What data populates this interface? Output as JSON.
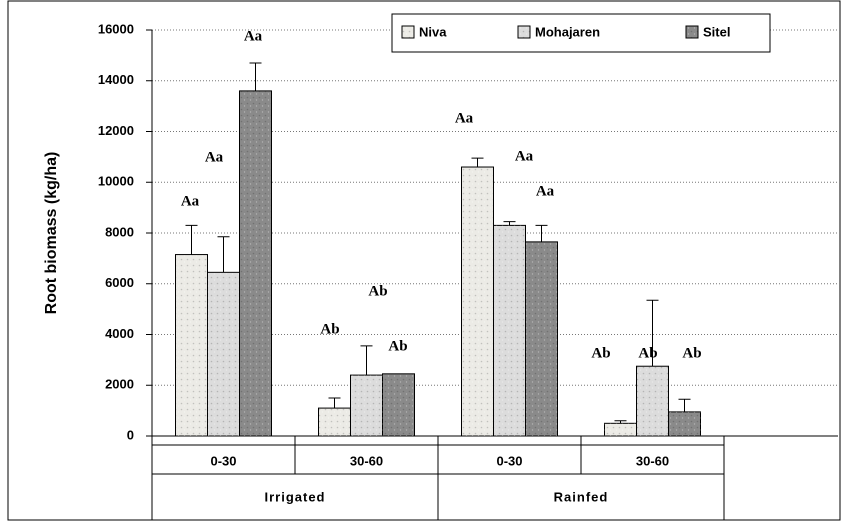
{
  "chart_data": {
    "type": "bar",
    "y_label": "Root biomass (kg/ha)",
    "categories": [
      "0-30",
      "30-60",
      "0-30",
      "30-60"
    ],
    "groups": [
      "Irrigated",
      "Rainfed"
    ],
    "series": [
      {
        "name": "Niva",
        "color": "#ecebe6",
        "values": [
          7150,
          1100,
          10600,
          500
        ],
        "errors": [
          1150,
          400,
          350,
          100
        ]
      },
      {
        "name": "Mohajaren",
        "color": "#dcdcdc",
        "values": [
          6450,
          2400,
          8300,
          2750
        ],
        "errors": [
          1400,
          1150,
          150,
          2600
        ]
      },
      {
        "name": "Sitel",
        "color": "#8a8a8a",
        "values": [
          13600,
          2450,
          7650,
          950
        ],
        "errors": [
          1100,
          null,
          650,
          500
        ]
      }
    ],
    "annotations": [
      "Aa",
      "Aa",
      "Aa",
      "Ab",
      "Ab",
      "Ab",
      "Aa",
      "Aa",
      "Aa",
      "Ab",
      "Ab",
      "Ab"
    ],
    "ylim": [
      0,
      16000
    ],
    "yticks": [
      0,
      2000,
      4000,
      6000,
      8000,
      10000,
      12000,
      14000,
      16000
    ],
    "grid": true,
    "legend": "top-right"
  }
}
